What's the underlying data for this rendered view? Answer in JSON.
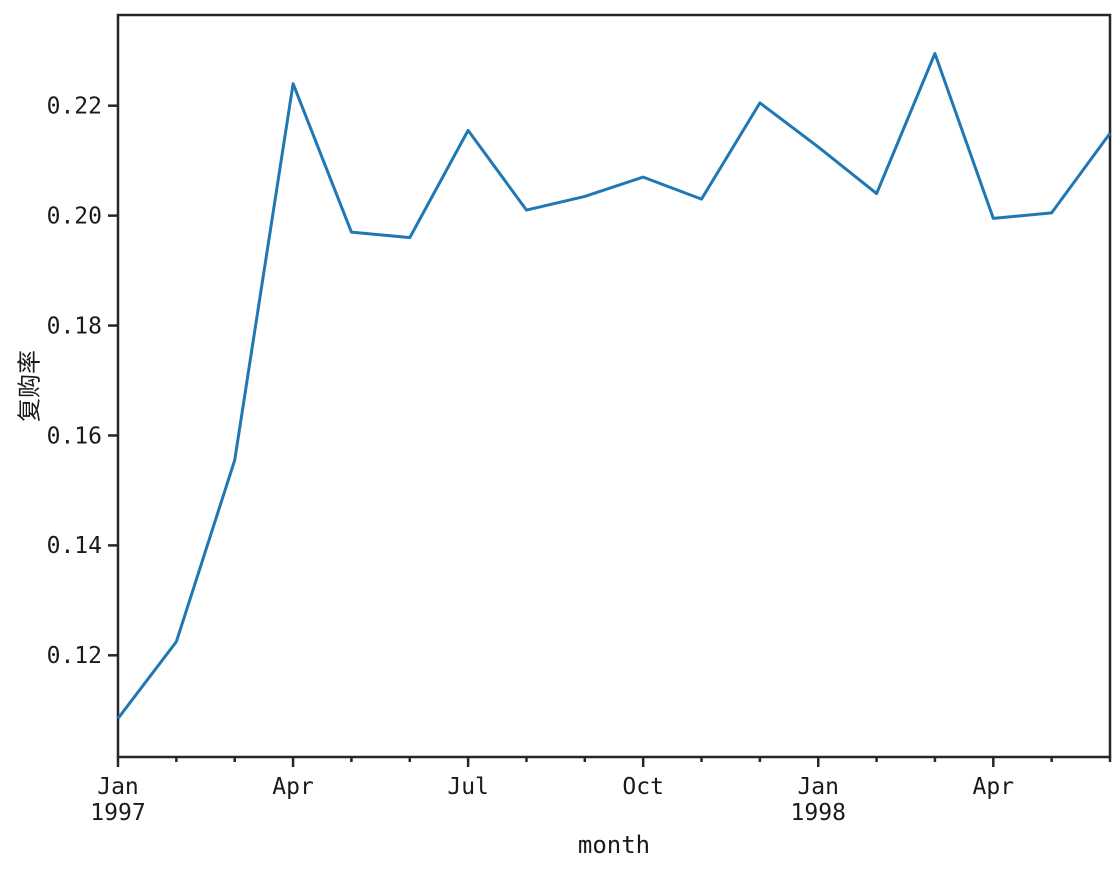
{
  "figure": {
    "background_color": "#ffffff"
  },
  "chart_data": {
    "type": "line",
    "title": "",
    "xlabel": "month",
    "ylabel": "复购率",
    "grid": false,
    "legend_position": "none",
    "line_color": "#1f77b4",
    "axis_color": "#262626",
    "text_color": "#1a1a1a",
    "x": [
      "1997-01",
      "1997-02",
      "1997-03",
      "1997-04",
      "1997-05",
      "1997-06",
      "1997-07",
      "1997-08",
      "1997-09",
      "1997-10",
      "1997-11",
      "1997-12",
      "1998-01",
      "1998-02",
      "1998-03",
      "1998-04",
      "1998-05",
      "1998-06"
    ],
    "values": [
      0.1085,
      0.1225,
      0.1555,
      0.224,
      0.197,
      0.196,
      0.2155,
      0.201,
      0.2035,
      0.207,
      0.203,
      0.2205,
      0.2125,
      0.204,
      0.2295,
      0.1995,
      0.2005,
      0.215
    ],
    "ylim": [
      0.1015,
      0.2365
    ],
    "yticks": [
      {
        "value": 0.12,
        "label": "0.12"
      },
      {
        "value": 0.14,
        "label": "0.14"
      },
      {
        "value": 0.16,
        "label": "0.16"
      },
      {
        "value": 0.18,
        "label": "0.18"
      },
      {
        "value": 0.2,
        "label": "0.20"
      },
      {
        "value": 0.22,
        "label": "0.22"
      }
    ],
    "xticks_major": [
      {
        "month_index": 0,
        "label": "Jan",
        "year_label": "1997"
      },
      {
        "month_index": 3,
        "label": "Apr",
        "year_label": ""
      },
      {
        "month_index": 6,
        "label": "Jul",
        "year_label": ""
      },
      {
        "month_index": 9,
        "label": "Oct",
        "year_label": ""
      },
      {
        "month_index": 12,
        "label": "Jan",
        "year_label": "1998"
      },
      {
        "month_index": 15,
        "label": "Apr",
        "year_label": ""
      }
    ],
    "xticks_minor_month_indices": [
      1,
      2,
      4,
      5,
      7,
      8,
      10,
      11,
      13,
      14,
      16,
      17
    ]
  }
}
